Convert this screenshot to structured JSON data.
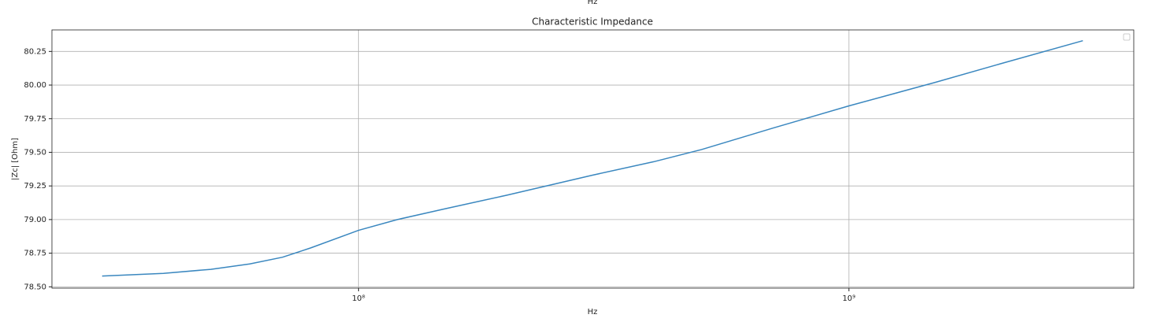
{
  "previous_xlabel": "Hz",
  "chart_data": {
    "type": "line",
    "title": "Characteristic Impedance",
    "x_label": "Hz",
    "y_label": "|Zc| [Ohm]",
    "x_scale": "log",
    "grid": true,
    "legend": "upper right",
    "xlim": [
      23700000,
      3810000000
    ],
    "ylim": [
      78.49,
      80.41
    ],
    "xticks": [
      {
        "value": 100000000,
        "label": "10⁸"
      },
      {
        "value": 1000000000,
        "label": "10⁹"
      }
    ],
    "yticks": [
      {
        "value": 78.5,
        "label": "78.50"
      },
      {
        "value": 78.75,
        "label": "78.75"
      },
      {
        "value": 79,
        "label": "79.00"
      },
      {
        "value": 79.25,
        "label": "79.25"
      },
      {
        "value": 79.5,
        "label": "79.50"
      },
      {
        "value": 79.75,
        "label": "79.75"
      },
      {
        "value": 80,
        "label": "80.00"
      },
      {
        "value": 80.25,
        "label": "80.25"
      }
    ],
    "x": [
      30000000,
      40000000,
      50000000,
      60000000,
      70000000,
      80000000,
      100000000,
      120000000,
      150000000,
      200000000,
      300000000,
      400000000,
      500000000,
      700000000,
      1000000000,
      1500000000,
      2000000000,
      3000000000
    ],
    "series": [
      {
        "color": "#3a87bf",
        "values": [
          78.58,
          78.6,
          78.63,
          78.67,
          78.72,
          78.79,
          78.92,
          79.0,
          79.08,
          79.18,
          79.33,
          79.43,
          79.52,
          79.68,
          79.845,
          80.02,
          80.15,
          80.33
        ]
      }
    ]
  }
}
